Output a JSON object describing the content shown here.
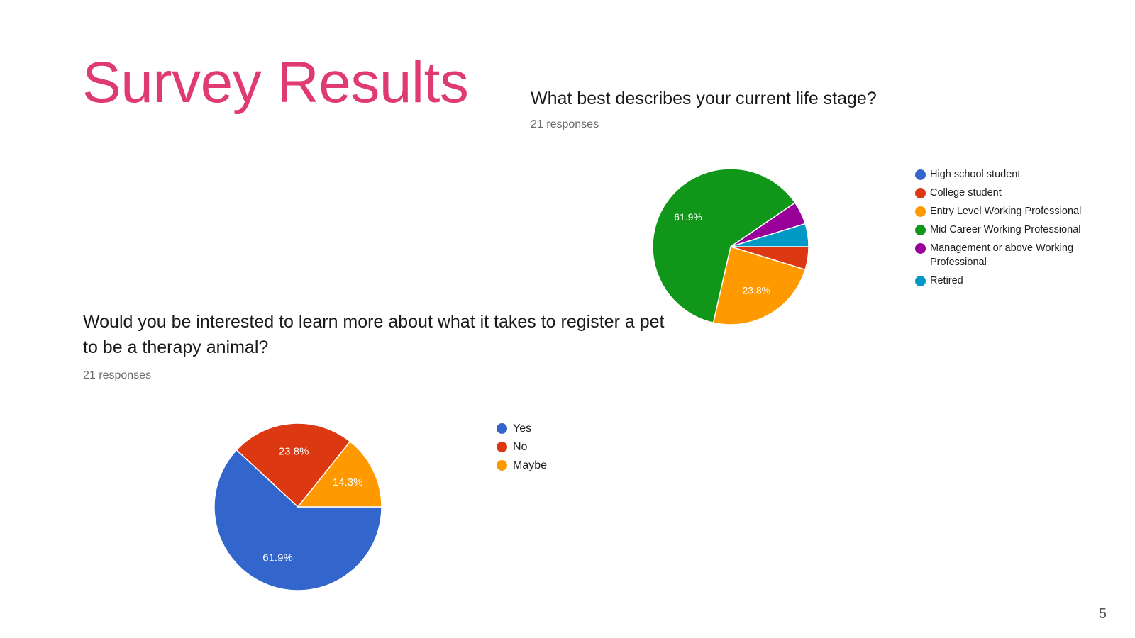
{
  "slide": {
    "title": "Survey Results",
    "title_color": "#e03a75",
    "page_number": "5"
  },
  "chart_data": [
    {
      "type": "pie",
      "title": "What best describes your current life stage?",
      "subtitle": "21 responses",
      "legend_position": "right",
      "categories": [
        "High school student",
        "College student",
        "Entry Level Working Professional",
        "Mid Career Working Professional",
        "Management or above Working Professional",
        "Retired"
      ],
      "values": [
        0,
        1,
        5,
        13,
        1,
        1
      ],
      "percent_labels": [
        "",
        "",
        "23.8%",
        "61.9%",
        "",
        ""
      ],
      "colors": [
        "#3366cc",
        "#dc3912",
        "#ff9900",
        "#109618",
        "#990099",
        "#0099c6"
      ]
    },
    {
      "type": "pie",
      "title": "Would you be interested to learn more about what it takes to register a pet to be a therapy animal?",
      "subtitle": "21 responses",
      "legend_position": "right",
      "categories": [
        "Yes",
        "No",
        "Maybe"
      ],
      "values": [
        13,
        5,
        3
      ],
      "percent_labels": [
        "61.9%",
        "23.8%",
        "14.3%"
      ],
      "colors": [
        "#3366cc",
        "#dc3912",
        "#ff9900"
      ]
    }
  ]
}
